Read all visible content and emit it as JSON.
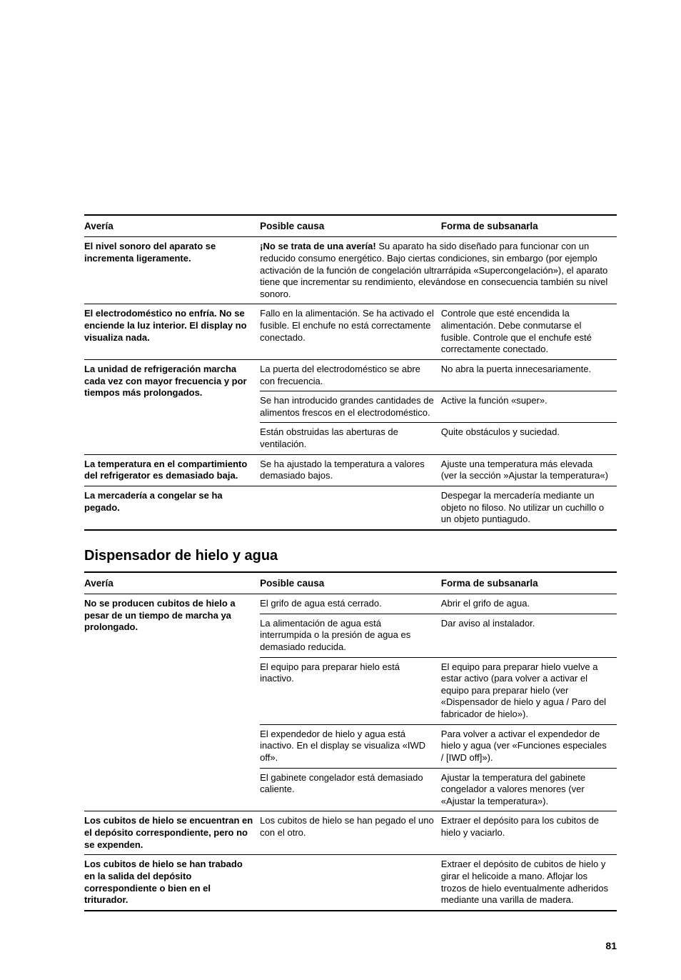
{
  "table1": {
    "headers": [
      "Avería",
      "Posible causa",
      "Forma de subsanarla"
    ],
    "rows": [
      {
        "label": "El nivel sonoro del aparato se incrementa ligeramente.",
        "cells": [
          {
            "text": "¡No se trata de una avería!",
            "bold_prefix": true,
            "rest": " Su aparato ha sido diseñado para funcionar con un reducido consumo energético. Bajo ciertas condiciones, sin embargo (por ejemplo activación de la función de congelación ultrarrápida «Supercongelación»), el aparato tiene que incrementar su rendimiento, elevándose en consecuencia también su nivel sonoro.",
            "colspan": 2
          }
        ]
      },
      {
        "label": "El electrodoméstico no enfría. No se enciende la luz interior. El display no visualiza nada.",
        "cells": [
          {
            "text": "Fallo en la alimentación. Se ha activado el fusible. El enchufe no está correctamente conectado."
          },
          {
            "text": "Controle que esté encendida la alimentación. Debe conmutarse el fusible. Controle que el enchufe esté correctamente conectado."
          }
        ]
      },
      {
        "label": "La unidad de refrigeración marcha cada vez con mayor frecuencia y por tiempos más prolongados.",
        "rowspan": 3,
        "sub": [
          [
            {
              "text": "La puerta del electrodoméstico se abre con frecuencia."
            },
            {
              "text": "No abra la puerta innecesariamente."
            }
          ],
          [
            {
              "text": "Se han introducido grandes cantidades de alimentos frescos en el electrodoméstico."
            },
            {
              "text": "Active la función «super»."
            }
          ],
          [
            {
              "text": "Están obstruidas las aberturas de ventilación."
            },
            {
              "text": "Quite obstáculos y suciedad."
            }
          ]
        ]
      },
      {
        "label": "La temperatura en el comparti­miento del refrigerator es demasiado baja.",
        "cells": [
          {
            "text": "Se ha ajustado la temperatura a valores demasiado bajos."
          },
          {
            "text": "Ajuste una temperatura más elevada (ver la sección »Ajustar la temperatura«)"
          }
        ]
      },
      {
        "label": "La mercadería a congelar se ha pegado.",
        "cells": [
          {
            "text": ""
          },
          {
            "text": "Despegar la mercadería mediante un objeto no filoso. No utilizar un cuchillo o un objeto puntiagudo."
          }
        ],
        "last": true
      }
    ]
  },
  "section2_title": "Dispensador de hielo y agua",
  "table2": {
    "headers": [
      "Avería",
      "Posible causa",
      "Forma de subsanarla"
    ],
    "rows": [
      {
        "label": "No se producen cubitos de hielo a pesar de un tiempo de marcha ya prolongado.",
        "rowspan": 5,
        "sub": [
          [
            {
              "text": "El grifo de agua está cerrado."
            },
            {
              "text": "Abrir el grifo de agua."
            }
          ],
          [
            {
              "text": "La alimentación de agua está interrumpida o la presión de agua es demasiado reducida."
            },
            {
              "text": "Dar aviso al instalador."
            }
          ],
          [
            {
              "text": "El equipo para preparar hielo está inactivo."
            },
            {
              "text": "El equipo para preparar hielo vuelve a estar activo (para volver a activar el equipo  para preparar hielo (ver «Dispensador de hielo y agua / Paro del fabricador de hielo»)."
            }
          ],
          [
            {
              "text": "El expendedor de hielo y agua está inactivo. En el display se visualiza «IWD off»."
            },
            {
              "text": "Para volver a activar el expendedor de hielo y agua (ver «Funciones especiales / [IWD off]»)."
            }
          ],
          [
            {
              "text": "El gabinete congelador está demasiado caliente."
            },
            {
              "text": "Ajustar la temperatura del gabinete congelador a valores menores (ver «Ajustar la temperatura»)."
            }
          ]
        ]
      },
      {
        "label": "Los cubitos de hielo se encuentran en el depósito correspondiente, pero no se expenden.",
        "cells": [
          {
            "text": "Los cubitos de hielo se han pegado el uno con el otro."
          },
          {
            "text": "Extraer el depósito para los cubitos de hielo y vaciarlo."
          }
        ]
      },
      {
        "label": "Los cubitos de hielo se han trabado en la salida del depósito correspondiente o bien en el triturador.",
        "cells": [
          {
            "text": ""
          },
          {
            "text": "Extraer el depósito de cubitos de hielo y girar el helicoide a mano. Aflojar los trozos de hielo eventualmente adheridos mediante una varilla de madera."
          }
        ],
        "last": true
      }
    ]
  },
  "page_number": "81"
}
